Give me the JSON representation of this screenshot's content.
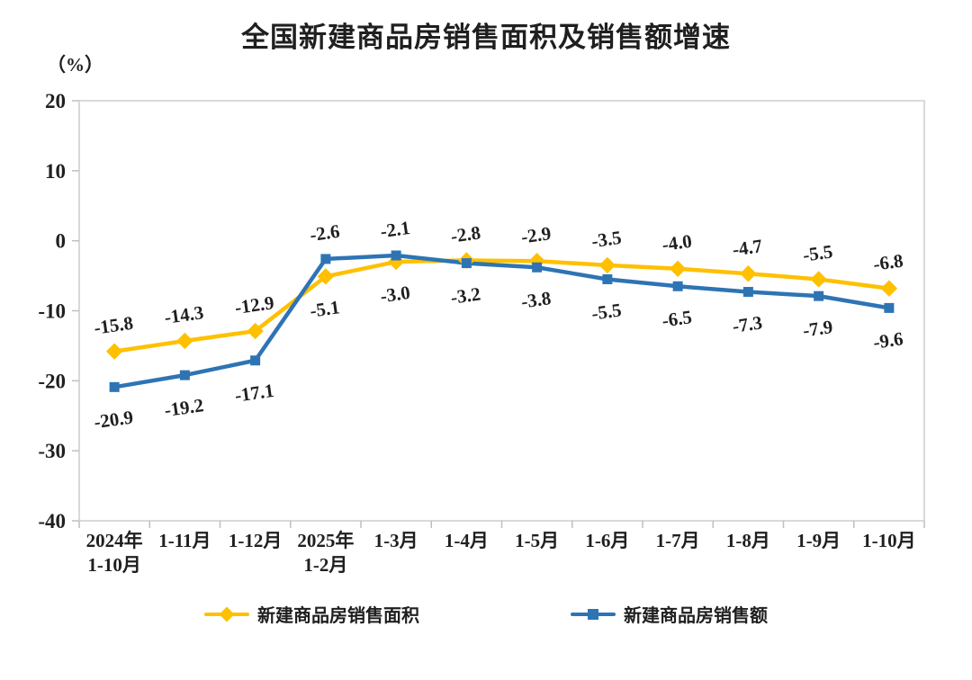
{
  "chart_data": {
    "type": "line",
    "title": "全国新建商品房销售面积及销售额增速",
    "unit_label": "（%）",
    "categories": [
      [
        "2024年",
        "1-10月"
      ],
      [
        "1-11月"
      ],
      [
        "1-12月"
      ],
      [
        "2025年",
        "1-2月"
      ],
      [
        "1-3月"
      ],
      [
        "1-4月"
      ],
      [
        "1-5月"
      ],
      [
        "1-6月"
      ],
      [
        "1-7月"
      ],
      [
        "1-8月"
      ],
      [
        "1-9月"
      ],
      [
        "1-10月"
      ]
    ],
    "series": [
      {
        "name": "新建商品房销售面积",
        "marker": "diamond",
        "color": "#FFC000",
        "values": [
          -15.8,
          -14.3,
          -12.9,
          -5.1,
          -3.0,
          -2.8,
          -2.9,
          -3.5,
          -4.0,
          -4.7,
          -5.5,
          -6.8
        ]
      },
      {
        "name": "新建商品房销售额",
        "marker": "square",
        "color": "#2E74B5",
        "values": [
          -20.9,
          -19.2,
          -17.1,
          -2.6,
          -2.1,
          -3.2,
          -3.8,
          -5.5,
          -6.5,
          -7.3,
          -7.9,
          -9.6
        ]
      }
    ],
    "y_axis": {
      "min": -40,
      "max": 20,
      "step": 10,
      "ticks": [
        20,
        10,
        0,
        -10,
        -20,
        -30,
        -40
      ]
    },
    "layout": {
      "grid": false,
      "legend_position": "bottom",
      "data_labels": true
    },
    "border_color": "#D9D9D9",
    "tick_color": "#BFBFBF",
    "text_color": "#1f1f1f"
  }
}
